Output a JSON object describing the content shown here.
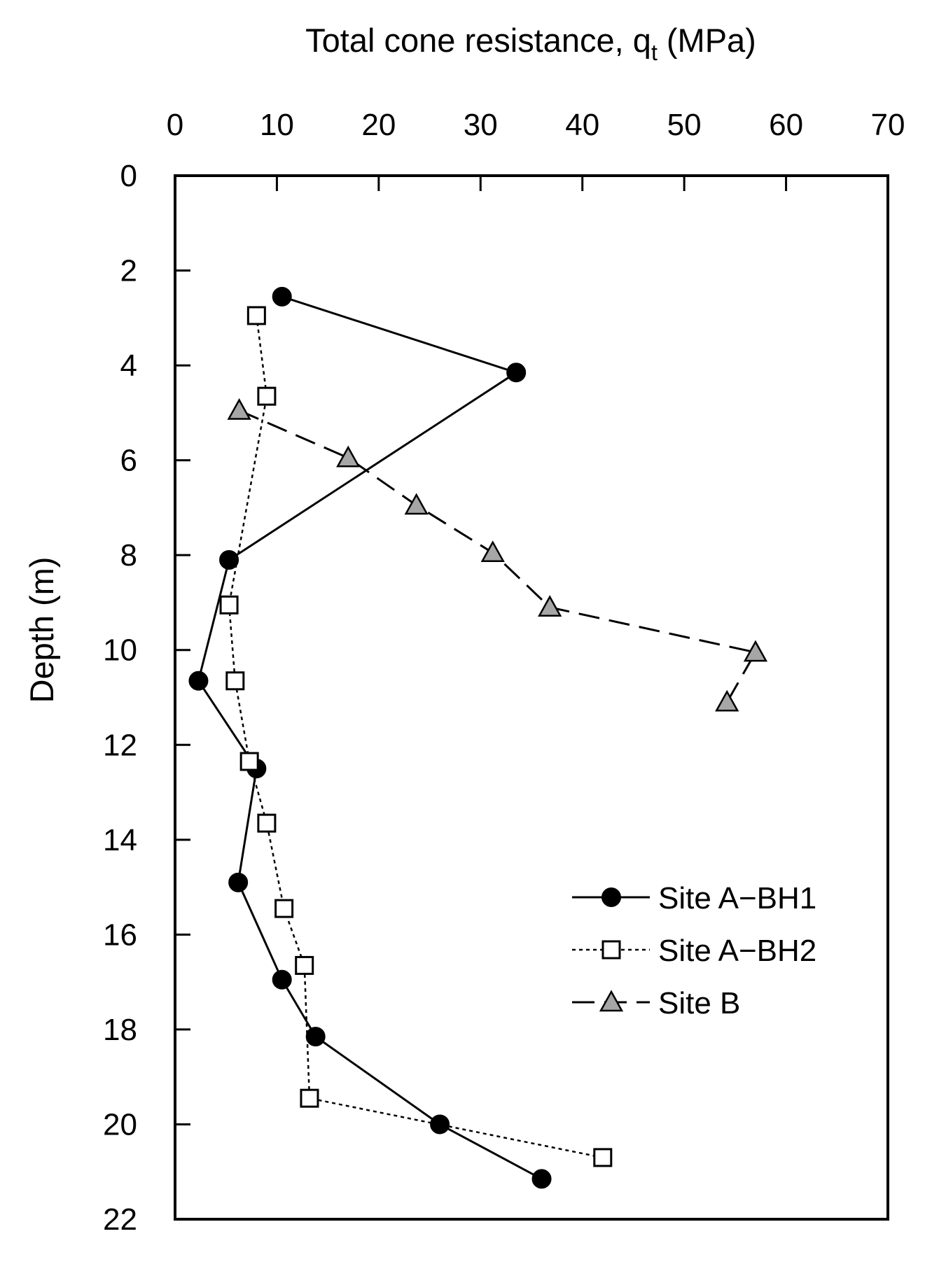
{
  "chart_data": {
    "type": "scatter",
    "xlabel": {
      "main": "Total cone resistance, q",
      "sub": "t",
      "unit": " (MPa)"
    },
    "ylabel": "Depth (m)",
    "xlim": [
      0,
      70
    ],
    "ylim": [
      0,
      22
    ],
    "y_inverted": true,
    "x_axis_position": "top",
    "grid": false,
    "xticks": [
      0,
      10,
      20,
      30,
      40,
      50,
      60,
      70
    ],
    "yticks": [
      0,
      2,
      4,
      6,
      8,
      10,
      12,
      14,
      16,
      18,
      20,
      22
    ],
    "legend_position": "bottom-right",
    "series": [
      {
        "name": "Site A−BH1",
        "marker": "circle",
        "line": "solid",
        "fill": "#000000",
        "points": [
          {
            "x": 10.5,
            "y": 2.55
          },
          {
            "x": 33.5,
            "y": 4.15
          },
          {
            "x": 5.3,
            "y": 8.1
          },
          {
            "x": 2.3,
            "y": 10.65
          },
          {
            "x": 8.0,
            "y": 12.5
          },
          {
            "x": 6.2,
            "y": 14.9
          },
          {
            "x": 10.5,
            "y": 16.95
          },
          {
            "x": 13.8,
            "y": 18.15
          },
          {
            "x": 26.0,
            "y": 20.0
          },
          {
            "x": 36.0,
            "y": 21.15
          }
        ]
      },
      {
        "name": "Site A−BH2",
        "marker": "square",
        "line": "dotted",
        "fill": "#ffffff",
        "points": [
          {
            "x": 8.0,
            "y": 2.95
          },
          {
            "x": 9.0,
            "y": 4.65
          },
          {
            "x": 5.3,
            "y": 9.05
          },
          {
            "x": 5.9,
            "y": 10.65
          },
          {
            "x": 7.3,
            "y": 12.35
          },
          {
            "x": 9.0,
            "y": 13.65
          },
          {
            "x": 10.7,
            "y": 15.45
          },
          {
            "x": 12.7,
            "y": 16.65
          },
          {
            "x": 13.2,
            "y": 19.45
          },
          {
            "x": 42.0,
            "y": 20.7
          }
        ]
      },
      {
        "name": "Site B",
        "marker": "triangle",
        "line": "dashed",
        "fill": "#a6a6a6",
        "points": [
          {
            "x": 6.3,
            "y": 4.95
          },
          {
            "x": 17.0,
            "y": 5.95
          },
          {
            "x": 23.7,
            "y": 6.95
          },
          {
            "x": 31.2,
            "y": 7.95
          },
          {
            "x": 36.8,
            "y": 9.1
          },
          {
            "x": 57.0,
            "y": 10.05
          },
          {
            "x": 54.2,
            "y": 11.1
          }
        ]
      }
    ]
  }
}
